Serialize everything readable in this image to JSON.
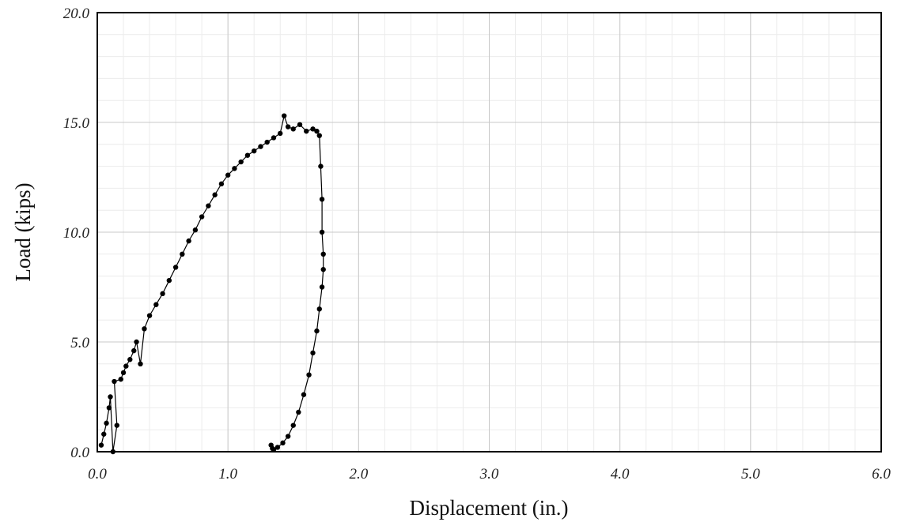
{
  "chart_data": {
    "type": "scatter",
    "title": "",
    "xlabel": "Displacement (in.)",
    "ylabel": "Load (kips)",
    "xlim": [
      0.0,
      6.0
    ],
    "ylim": [
      0.0,
      20.0
    ],
    "x_ticks": [
      "0.0",
      "1.0",
      "2.0",
      "3.0",
      "4.0",
      "5.0",
      "6.0"
    ],
    "y_ticks": [
      "0.0",
      "5.0",
      "10.0",
      "15.0",
      "20.0"
    ],
    "grid": {
      "major": true,
      "minor": true
    },
    "legend": "none",
    "marker_color": "#000000",
    "series": [
      {
        "name": "",
        "x": [
          0.03,
          0.05,
          0.07,
          0.09,
          0.1,
          0.12,
          0.15,
          0.13,
          0.18,
          0.2,
          0.22,
          0.25,
          0.28,
          0.3,
          0.33,
          0.36,
          0.4,
          0.45,
          0.5,
          0.55,
          0.6,
          0.65,
          0.7,
          0.75,
          0.8,
          0.85,
          0.9,
          0.95,
          1.0,
          1.05,
          1.1,
          1.15,
          1.2,
          1.25,
          1.3,
          1.35,
          1.4,
          1.43,
          1.46,
          1.5,
          1.55,
          1.6,
          1.65,
          1.68,
          1.7,
          1.71,
          1.72,
          1.72,
          1.73,
          1.73,
          1.72,
          1.7,
          1.68,
          1.65,
          1.62,
          1.58,
          1.54,
          1.5,
          1.46,
          1.42,
          1.38,
          1.35,
          1.34,
          1.33
        ],
        "y": [
          0.3,
          0.8,
          1.3,
          2.0,
          2.5,
          0.0,
          1.2,
          3.2,
          3.3,
          3.6,
          3.9,
          4.2,
          4.6,
          5.0,
          4.0,
          5.6,
          6.2,
          6.7,
          7.2,
          7.8,
          8.4,
          9.0,
          9.6,
          10.1,
          10.7,
          11.2,
          11.7,
          12.2,
          12.6,
          12.9,
          13.2,
          13.5,
          13.7,
          13.9,
          14.1,
          14.3,
          14.5,
          15.3,
          14.8,
          14.7,
          14.9,
          14.6,
          14.7,
          14.6,
          14.4,
          13.0,
          11.5,
          10.0,
          9.0,
          8.3,
          7.5,
          6.5,
          5.5,
          4.5,
          3.5,
          2.6,
          1.8,
          1.2,
          0.7,
          0.4,
          0.2,
          0.1,
          0.15,
          0.3
        ]
      }
    ]
  }
}
